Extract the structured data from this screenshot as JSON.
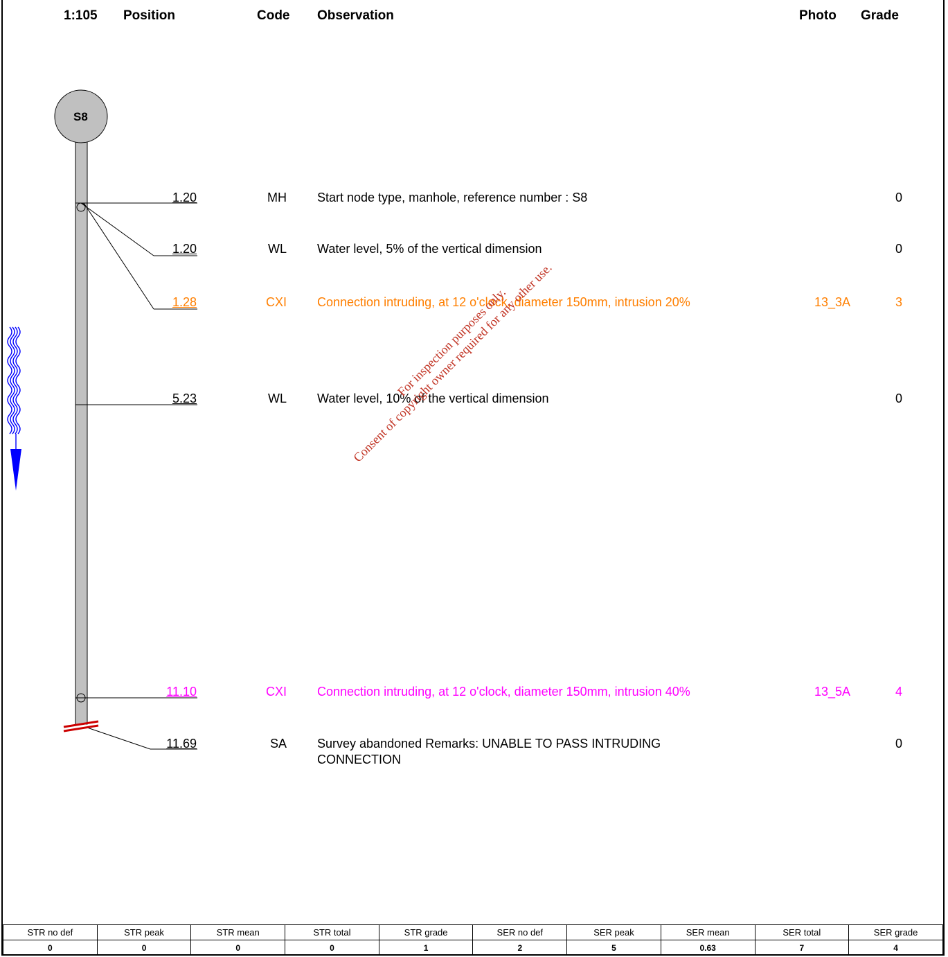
{
  "header": {
    "scale": "1:105",
    "position": "Position",
    "code": "Code",
    "observation": "Observation",
    "photo": "Photo",
    "grade": "Grade"
  },
  "start_node": {
    "label": "S8"
  },
  "observations": [
    {
      "position": "1.20",
      "code": "MH",
      "text": "Start node type, manhole, reference number : S8",
      "photo": "",
      "grade": "0",
      "color": "#000000"
    },
    {
      "position": "1.20",
      "code": "WL",
      "text": "Water level, 5% of the vertical dimension",
      "photo": "",
      "grade": "0",
      "color": "#000000"
    },
    {
      "position": "1.28",
      "code": "CXI",
      "text": "Connection intruding, at 12 o'clock, diameter 150mm, intrusion 20%",
      "photo": "13_3A",
      "grade": "3",
      "color": "#ff7f00"
    },
    {
      "position": "5.23",
      "code": "WL",
      "text": "Water level, 10% of the vertical dimension",
      "photo": "",
      "grade": "0",
      "color": "#000000"
    },
    {
      "position": "11.10",
      "code": "CXI",
      "text": "Connection intruding, at 12 o'clock, diameter 150mm, intrusion 40%",
      "photo": "13_5A",
      "grade": "4",
      "color": "#ff00ff"
    },
    {
      "position": "11.69",
      "code": "SA",
      "text_line1": "Survey abandoned Remarks: UNABLE TO PASS INTRUDING",
      "text_line2": "CONNECTION",
      "photo": "",
      "grade": "0",
      "color": "#000000"
    }
  ],
  "watermark": {
    "line1": "For inspection purposes only.",
    "line2": "Consent of copyright owner required for any other use."
  },
  "summary": {
    "headers": [
      "STR no def",
      "STR peak",
      "STR mean",
      "STR total",
      "STR grade",
      "SER no def",
      "SER peak",
      "SER mean",
      "SER total",
      "SER grade"
    ],
    "values": [
      "0",
      "0",
      "0",
      "0",
      "1",
      "2",
      "5",
      "0.63",
      "7",
      "4"
    ]
  },
  "colors": {
    "pipe": "#c0c0c0",
    "flow_arrow": "#0000ff",
    "abandon": "#cc0000",
    "watermark": "#c03020"
  }
}
